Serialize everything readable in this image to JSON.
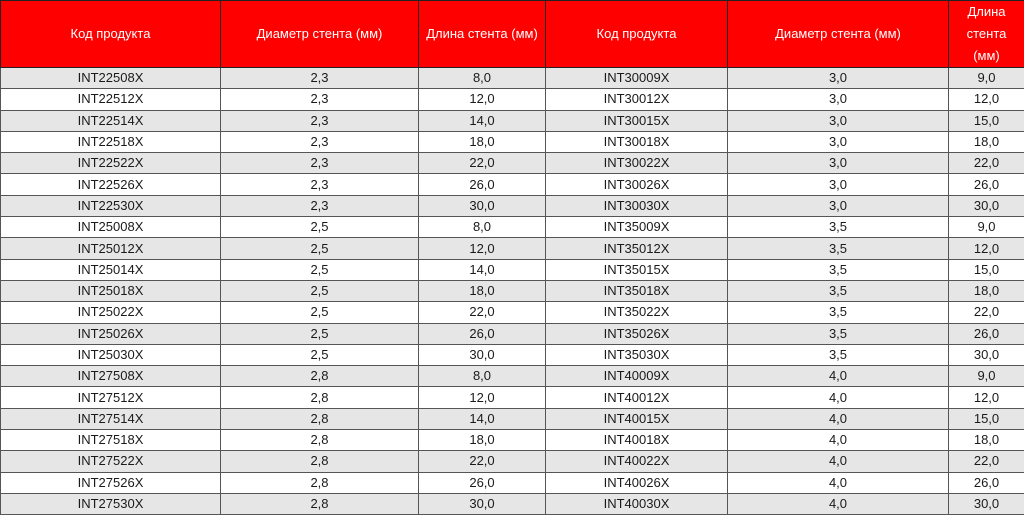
{
  "headers": [
    "Код продукта",
    "Диаметр стента (мм)",
    "Длина стента (мм)",
    "Код продукта",
    "Диаметр стента (мм)",
    "Длина стента (мм)"
  ],
  "colors": {
    "header_bg": "#ff0000",
    "header_text": "#ffffff",
    "stripe": "#e6e6e6"
  },
  "rows": [
    [
      "INT22508X",
      "2,3",
      "8,0",
      "INT30009X",
      "3,0",
      "9,0"
    ],
    [
      "INT22512X",
      "2,3",
      "12,0",
      "INT30012X",
      "3,0",
      "12,0"
    ],
    [
      "INT22514X",
      "2,3",
      "14,0",
      "INT30015X",
      "3,0",
      "15,0"
    ],
    [
      "INT22518X",
      "2,3",
      "18,0",
      "INT30018X",
      "3,0",
      "18,0"
    ],
    [
      "INT22522X",
      "2,3",
      "22,0",
      "INT30022X",
      "3,0",
      "22,0"
    ],
    [
      "INT22526X",
      "2,3",
      "26,0",
      "INT30026X",
      "3,0",
      "26,0"
    ],
    [
      "INT22530X",
      "2,3",
      "30,0",
      "INT30030X",
      "3,0",
      "30,0"
    ],
    [
      "INT25008X",
      "2,5",
      "8,0",
      "INT35009X",
      "3,5",
      "9,0"
    ],
    [
      "INT25012X",
      "2,5",
      "12,0",
      "INT35012X",
      "3,5",
      "12,0"
    ],
    [
      "INT25014X",
      "2,5",
      "14,0",
      "INT35015X",
      "3,5",
      "15,0"
    ],
    [
      "INT25018X",
      "2,5",
      "18,0",
      "INT35018X",
      "3,5",
      "18,0"
    ],
    [
      "INT25022X",
      "2,5",
      "22,0",
      "INT35022X",
      "3,5",
      "22,0"
    ],
    [
      "INT25026X",
      "2,5",
      "26,0",
      "INT35026X",
      "3,5",
      "26,0"
    ],
    [
      "INT25030X",
      "2,5",
      "30,0",
      "INT35030X",
      "3,5",
      "30,0"
    ],
    [
      "INT27508X",
      "2,8",
      "8,0",
      "INT40009X",
      "4,0",
      "9,0"
    ],
    [
      "INT27512X",
      "2,8",
      "12,0",
      "INT40012X",
      "4,0",
      "12,0"
    ],
    [
      "INT27514X",
      "2,8",
      "14,0",
      "INT40015X",
      "4,0",
      "15,0"
    ],
    [
      "INT27518X",
      "2,8",
      "18,0",
      "INT40018X",
      "4,0",
      "18,0"
    ],
    [
      "INT27522X",
      "2,8",
      "22,0",
      "INT40022X",
      "4,0",
      "22,0"
    ],
    [
      "INT27526X",
      "2,8",
      "26,0",
      "INT40026X",
      "4,0",
      "26,0"
    ],
    [
      "INT27530X",
      "2,8",
      "30,0",
      "INT40030X",
      "4,0",
      "30,0"
    ]
  ]
}
